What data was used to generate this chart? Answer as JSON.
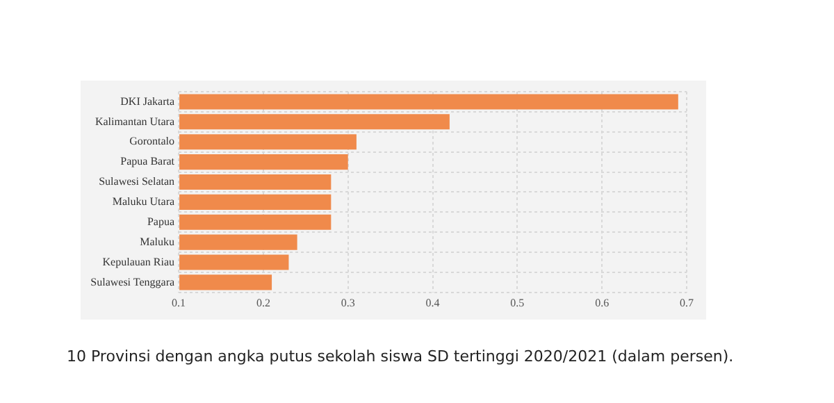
{
  "chart_data": {
    "type": "bar",
    "orientation": "horizontal",
    "categories": [
      "DKI Jakarta",
      "Kalimantan Utara",
      "Gorontalo",
      "Papua Barat",
      "Sulawesi Selatan",
      "Maluku Utara",
      "Papua",
      "Maluku",
      "Kepulauan Riau",
      "Sulawesi Tenggara"
    ],
    "values": [
      0.69,
      0.42,
      0.31,
      0.3,
      0.28,
      0.28,
      0.28,
      0.24,
      0.23,
      0.21
    ],
    "color": "#f08a4b",
    "xlim": [
      0.1,
      0.7
    ],
    "xticks": [
      0.1,
      0.2,
      0.3,
      0.4,
      0.5,
      0.6,
      0.7
    ],
    "grid": true,
    "line_style": "dotted",
    "annotations": [
      "10 Provinsi dengan angka putus sekolah siswa SD tertinggi 2020/2021  (dalam persen)."
    ]
  }
}
